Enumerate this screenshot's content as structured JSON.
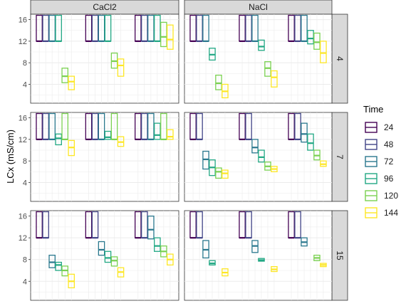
{
  "chart_data": {
    "type": "boxplot",
    "ylabel": "LCx (mS/cm)",
    "xlabel": "",
    "ylim": [
      0.5,
      17
    ],
    "yticks": [
      4,
      8,
      12,
      16
    ],
    "grid": true,
    "legend": {
      "title": "Time",
      "placement": "right"
    },
    "columns": [
      "CaCl2",
      "NaCl"
    ],
    "rows": [
      "4",
      "7",
      "15"
    ],
    "groups_per_panel": 3,
    "times": [
      "24",
      "48",
      "72",
      "96",
      "120",
      "144"
    ],
    "colors": {
      "24": "#440154",
      "48": "#414487",
      "72": "#2A788E",
      "96": "#22A884",
      "120": "#7AD151",
      "144": "#FDE725"
    },
    "panels": [
      {
        "column": "CaCl2",
        "row": "4",
        "boxes": [
          [
            {
              "time": "24",
              "q1": 12,
              "med": 12,
              "q3": 16.8
            },
            {
              "time": "48",
              "q1": 12,
              "med": 12,
              "q3": 16.8
            },
            {
              "time": "72",
              "q1": 12,
              "med": 12,
              "q3": 16.8
            },
            {
              "time": "96",
              "q1": 12,
              "med": 12,
              "q3": 16.8
            },
            {
              "time": "120",
              "q1": 4.3,
              "med": 5.5,
              "q3": 7.0
            },
            {
              "time": "144",
              "q1": 3.0,
              "med": 4.5,
              "q3": 5.5
            }
          ],
          [
            {
              "time": "24",
              "q1": 12,
              "med": 12,
              "q3": 16.8
            },
            {
              "time": "48",
              "q1": 12,
              "med": 12,
              "q3": 16.8
            },
            {
              "time": "72",
              "q1": 12,
              "med": 12,
              "q3": 16.8
            },
            {
              "time": "96",
              "q1": 12,
              "med": 12,
              "q3": 16.8
            },
            {
              "time": "120",
              "q1": 7.0,
              "med": 8.3,
              "q3": 9.8
            },
            {
              "time": "144",
              "q1": 5.5,
              "med": 7.5,
              "q3": 8.7
            }
          ],
          [
            {
              "time": "24",
              "q1": 12,
              "med": 12,
              "q3": 16.8
            },
            {
              "time": "48",
              "q1": 12,
              "med": 12,
              "q3": 16.8
            },
            {
              "time": "72",
              "q1": 12,
              "med": 12,
              "q3": 16.8
            },
            {
              "time": "96",
              "q1": 12,
              "med": 12,
              "q3": 16.8
            },
            {
              "time": "120",
              "q1": 11.0,
              "med": 12.8,
              "q3": 15.5
            },
            {
              "time": "144",
              "q1": 10.5,
              "med": 12.3,
              "q3": 15.0
            }
          ]
        ]
      },
      {
        "column": "NaCl",
        "row": "4",
        "boxes": [
          [
            {
              "time": "24",
              "q1": 12,
              "med": 12,
              "q3": 16.8
            },
            {
              "time": "48",
              "q1": 12,
              "med": 12,
              "q3": 16.8
            },
            {
              "time": "72",
              "q1": 12,
              "med": 12,
              "q3": 16.8
            },
            {
              "time": "96",
              "q1": 8.5,
              "med": 9.5,
              "q3": 10.7
            },
            {
              "time": "120",
              "q1": 3.0,
              "med": 4.2,
              "q3": 5.7
            },
            {
              "time": "144",
              "q1": 1.5,
              "med": 2.7,
              "q3": 4.0
            }
          ],
          [
            {
              "time": "24",
              "q1": 12,
              "med": 12,
              "q3": 16.8
            },
            {
              "time": "48",
              "q1": 12,
              "med": 12,
              "q3": 16.8
            },
            {
              "time": "72",
              "q1": 12,
              "med": 12,
              "q3": 16.8
            },
            {
              "time": "96",
              "q1": 10.3,
              "med": 11.0,
              "q3": 12.2
            },
            {
              "time": "120",
              "q1": 5.5,
              "med": 7.0,
              "q3": 8.2
            },
            {
              "time": "144",
              "q1": 3.5,
              "med": 5.3,
              "q3": 6.5
            }
          ],
          [
            {
              "time": "24",
              "q1": 12,
              "med": 12,
              "q3": 16.8
            },
            {
              "time": "48",
              "q1": 12,
              "med": 12,
              "q3": 16.8
            },
            {
              "time": "72",
              "q1": 12,
              "med": 12,
              "q3": 16.8
            },
            {
              "time": "96",
              "q1": 11.5,
              "med": 12.5,
              "q3": 14.0
            },
            {
              "time": "120",
              "q1": 10.5,
              "med": 11.8,
              "q3": 13.5
            },
            {
              "time": "144",
              "q1": 8.0,
              "med": 9.8,
              "q3": 12.0
            }
          ]
        ]
      },
      {
        "column": "CaCl2",
        "row": "7",
        "boxes": [
          [
            {
              "time": "24",
              "q1": 12,
              "med": 12,
              "q3": 16.8
            },
            {
              "time": "48",
              "q1": 12,
              "med": 12,
              "q3": 16.8
            },
            {
              "time": "72",
              "q1": 12,
              "med": 12,
              "q3": 16.8
            },
            {
              "time": "96",
              "q1": 11.0,
              "med": 12.2,
              "q3": 13.0
            },
            {
              "time": "120",
              "q1": 12,
              "med": 12,
              "q3": 16.8
            },
            {
              "time": "144",
              "q1": 9.0,
              "med": 10.5,
              "q3": 11.8
            }
          ],
          [
            {
              "time": "24",
              "q1": 12,
              "med": 12,
              "q3": 16.8
            },
            {
              "time": "48",
              "q1": 12,
              "med": 12,
              "q3": 16.8
            },
            {
              "time": "72",
              "q1": 12,
              "med": 12,
              "q3": 16.8
            },
            {
              "time": "96",
              "q1": 12.0,
              "med": 12.4,
              "q3": 13.5
            },
            {
              "time": "120",
              "q1": 12,
              "med": 12,
              "q3": 16.8
            },
            {
              "time": "144",
              "q1": 10.7,
              "med": 11.5,
              "q3": 12.5
            }
          ],
          [
            {
              "time": "24",
              "q1": 12,
              "med": 12,
              "q3": 16.8
            },
            {
              "time": "48",
              "q1": 12,
              "med": 12,
              "q3": 16.8
            },
            {
              "time": "72",
              "q1": 12,
              "med": 12,
              "q3": 16.8
            },
            {
              "time": "96",
              "q1": 12.0,
              "med": 12.8,
              "q3": 15.0
            },
            {
              "time": "120",
              "q1": 12,
              "med": 12,
              "q3": 16.8
            },
            {
              "time": "144",
              "q1": 12.0,
              "med": 12.5,
              "q3": 13.8
            }
          ]
        ]
      },
      {
        "column": "NaCl",
        "row": "7",
        "boxes": [
          [
            {
              "time": "24",
              "q1": 12,
              "med": 12,
              "q3": 16.8
            },
            {
              "time": "48",
              "q1": 12,
              "med": 12,
              "q3": 16.8
            },
            {
              "time": "72",
              "q1": 6.5,
              "med": 8.3,
              "q3": 9.8
            },
            {
              "time": "96",
              "q1": 5.3,
              "med": 6.8,
              "q3": 8.2
            },
            {
              "time": "120",
              "q1": 4.8,
              "med": 6.0,
              "q3": 6.7
            },
            {
              "time": "144",
              "q1": 4.8,
              "med": 5.7,
              "q3": 6.3
            }
          ],
          [
            {
              "time": "24",
              "q1": 12,
              "med": 12,
              "q3": 16.8
            },
            {
              "time": "48",
              "q1": 12,
              "med": 12,
              "q3": 16.8
            },
            {
              "time": "72",
              "q1": 9.5,
              "med": 10.5,
              "q3": 12.0
            },
            {
              "time": "96",
              "q1": 7.8,
              "med": 8.7,
              "q3": 10.0
            },
            {
              "time": "120",
              "q1": 6.3,
              "med": 7.0,
              "q3": 7.8
            },
            {
              "time": "144",
              "q1": 6.0,
              "med": 6.5,
              "q3": 7.0
            }
          ],
          [
            {
              "time": "24",
              "q1": 12,
              "med": 12,
              "q3": 16.8
            },
            {
              "time": "48",
              "q1": 12,
              "med": 12,
              "q3": 16.8
            },
            {
              "time": "72",
              "q1": 11.5,
              "med": 13.0,
              "q3": 15.0
            },
            {
              "time": "96",
              "q1": 10.0,
              "med": 11.3,
              "q3": 13.0
            },
            {
              "time": "120",
              "q1": 8.2,
              "med": 9.0,
              "q3": 10.0
            },
            {
              "time": "144",
              "q1": 7.0,
              "med": 7.4,
              "q3": 8.0
            }
          ]
        ]
      },
      {
        "column": "CaCl2",
        "row": "15",
        "boxes": [
          [
            {
              "time": "24",
              "q1": 12,
              "med": 12,
              "q3": 16.8
            },
            {
              "time": "48",
              "q1": 12,
              "med": 12,
              "q3": 16.8
            },
            {
              "time": "72",
              "q1": 6.5,
              "med": 7.5,
              "q3": 8.8
            },
            {
              "time": "96",
              "q1": 6.0,
              "med": 7.0,
              "q3": 7.5
            },
            {
              "time": "120",
              "q1": 5.0,
              "med": 6.0,
              "q3": 6.8
            },
            {
              "time": "144",
              "q1": 2.8,
              "med": 4.0,
              "q3": 5.3
            }
          ],
          [
            {
              "time": "24",
              "q1": 12,
              "med": 12,
              "q3": 16.8
            },
            {
              "time": "48",
              "q1": 12,
              "med": 12,
              "q3": 16.8
            },
            {
              "time": "72",
              "q1": 8.8,
              "med": 9.8,
              "q3": 11.3
            },
            {
              "time": "96",
              "q1": 7.5,
              "med": 8.3,
              "q3": 9.5
            },
            {
              "time": "120",
              "q1": 6.8,
              "med": 7.8,
              "q3": 8.5
            },
            {
              "time": "144",
              "q1": 4.8,
              "med": 5.7,
              "q3": 6.5
            }
          ],
          [
            {
              "time": "24",
              "q1": 12,
              "med": 12,
              "q3": 16.8
            },
            {
              "time": "48",
              "q1": 12,
              "med": 12,
              "q3": 16.8
            },
            {
              "time": "72",
              "q1": 11.8,
              "med": 13.5,
              "q3": 16.0
            },
            {
              "time": "96",
              "q1": 9.5,
              "med": 10.5,
              "q3": 12.0
            },
            {
              "time": "120",
              "q1": 8.5,
              "med": 9.5,
              "q3": 10.5
            },
            {
              "time": "144",
              "q1": 7.0,
              "med": 8.0,
              "q3": 9.0
            }
          ]
        ]
      },
      {
        "column": "NaCl",
        "row": "15",
        "boxes": [
          [
            {
              "time": "24",
              "q1": 12,
              "med": 12,
              "q3": 16.8
            },
            {
              "time": "48",
              "q1": 12,
              "med": 12,
              "q3": 16.8
            },
            {
              "time": "72",
              "q1": 8.3,
              "med": 9.8,
              "q3": 11.5
            },
            {
              "time": "96",
              "q1": 7.0,
              "med": 7.3,
              "q3": 7.8
            },
            {
              "time": "120",
              "q1": null,
              "med": null,
              "q3": null
            },
            {
              "time": "144",
              "q1": 5.0,
              "med": 5.6,
              "q3": 6.3
            }
          ],
          [
            {
              "time": "24",
              "q1": 12,
              "med": 12,
              "q3": 16.8
            },
            {
              "time": "48",
              "q1": 12,
              "med": 12,
              "q3": 16.8
            },
            {
              "time": "72",
              "q1": 9.3,
              "med": 10.5,
              "q3": 11.5
            },
            {
              "time": "96",
              "q1": 7.7,
              "med": 7.9,
              "q3": 8.2
            },
            {
              "time": "120",
              "q1": null,
              "med": null,
              "q3": null
            },
            {
              "time": "144",
              "q1": 5.8,
              "med": 6.2,
              "q3": 6.7
            }
          ],
          [
            {
              "time": "24",
              "q1": 12,
              "med": 12,
              "q3": 16.8
            },
            {
              "time": "48",
              "q1": 12,
              "med": 12,
              "q3": 16.8
            },
            {
              "time": "72",
              "q1": 10.5,
              "med": 11.2,
              "q3": 12.0
            },
            {
              "time": "96",
              "q1": null,
              "med": null,
              "q3": null
            },
            {
              "time": "120",
              "q1": 7.8,
              "med": 8.3,
              "q3": 8.8
            },
            {
              "time": "144",
              "q1": 6.7,
              "med": 7.0,
              "q3": 7.3
            }
          ]
        ]
      }
    ]
  }
}
